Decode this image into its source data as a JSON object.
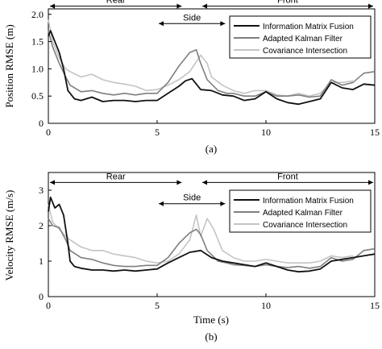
{
  "charts": [
    {
      "caption": "(a)",
      "ylabel": "Position RMSE (m)",
      "xlabel": "",
      "xlim": [
        0,
        15
      ],
      "ylim": [
        0,
        2.1
      ],
      "xticks": [
        "0",
        "5",
        "10",
        "15"
      ],
      "yticks": [
        "0",
        "0.5",
        "1.0",
        "1.5",
        "2.0"
      ],
      "ytick_values": [
        0,
        0.5,
        1.0,
        1.5,
        2.0
      ],
      "spans": [
        {
          "label": "Rear",
          "start": 0,
          "end": 6.2,
          "y": 2.15
        },
        {
          "label": "Side",
          "start": 5.0,
          "end": 8.2,
          "y": 1.83
        },
        {
          "label": "Front",
          "start": 7.0,
          "end": 15,
          "y": 2.15
        }
      ],
      "legend": {
        "position": "top-right"
      }
    },
    {
      "caption": "(b)",
      "ylabel": "Velocity RMSE (m/s)",
      "xlabel": "Time (s)",
      "xlim": [
        0,
        15
      ],
      "ylim": [
        0,
        3.5
      ],
      "xticks": [
        "0",
        "5",
        "10",
        "15"
      ],
      "yticks": [
        "0",
        "1",
        "2",
        "3"
      ],
      "ytick_values": [
        0,
        1,
        2,
        3
      ],
      "spans": [
        {
          "label": "Rear",
          "start": 0,
          "end": 6.2,
          "y": 3.22
        },
        {
          "label": "Side",
          "start": 5.0,
          "end": 8.2,
          "y": 2.62
        },
        {
          "label": "Front",
          "start": 7.0,
          "end": 15,
          "y": 3.22
        }
      ],
      "legend": {
        "position": "top-right"
      }
    }
  ],
  "legend_labels": [
    "Information Matrix Fusion",
    "Adapted Kalman Filter",
    "Covariance Intersection"
  ],
  "colors": {
    "imf": "#111111",
    "akf": "#7f7f7f",
    "ci": "#c4c4c4",
    "axis": "#000000"
  },
  "chart_data": [
    {
      "type": "line",
      "title": "",
      "caption": "(a)",
      "xlabel": "",
      "ylabel": "Position RMSE (m)",
      "xlim": [
        0,
        15
      ],
      "ylim": [
        0,
        2.1
      ],
      "grid": false,
      "legend": "top-right",
      "series": [
        {
          "name": "Information Matrix Fusion",
          "x": [
            0,
            0.1,
            0.3,
            0.5,
            0.7,
            0.9,
            1.0,
            1.2,
            1.5,
            2.0,
            2.5,
            3.0,
            3.5,
            4.0,
            4.5,
            5.0,
            5.5,
            6.0,
            6.3,
            6.6,
            6.8,
            7.0,
            7.5,
            8.0,
            8.5,
            9.0,
            9.5,
            10.0,
            10.5,
            11.0,
            11.5,
            12.0,
            12.5,
            13.0,
            13.5,
            14.0,
            14.5,
            15.0
          ],
          "y": [
            1.6,
            1.7,
            1.5,
            1.3,
            1.0,
            0.6,
            0.55,
            0.45,
            0.42,
            0.48,
            0.4,
            0.42,
            0.42,
            0.4,
            0.42,
            0.42,
            0.55,
            0.68,
            0.78,
            0.82,
            0.72,
            0.62,
            0.6,
            0.52,
            0.5,
            0.42,
            0.45,
            0.58,
            0.45,
            0.38,
            0.35,
            0.4,
            0.45,
            0.75,
            0.65,
            0.62,
            0.72,
            0.7
          ]
        },
        {
          "name": "Adapted Kalman Filter",
          "x": [
            0,
            0.2,
            0.5,
            0.8,
            1.0,
            1.5,
            2.0,
            2.5,
            3.0,
            3.5,
            4.0,
            4.5,
            5.0,
            5.5,
            6.0,
            6.5,
            6.8,
            7.0,
            7.3,
            7.8,
            8.2,
            8.5,
            9.0,
            9.5,
            10.0,
            10.5,
            11.0,
            11.5,
            12.0,
            12.5,
            13.0,
            13.5,
            14.0,
            14.5,
            15.0
          ],
          "y": [
            1.7,
            1.4,
            1.1,
            0.85,
            0.7,
            0.58,
            0.6,
            0.55,
            0.52,
            0.55,
            0.52,
            0.55,
            0.55,
            0.75,
            1.05,
            1.3,
            1.35,
            1.1,
            0.8,
            0.6,
            0.55,
            0.55,
            0.5,
            0.5,
            0.58,
            0.5,
            0.5,
            0.52,
            0.48,
            0.5,
            0.8,
            0.7,
            0.75,
            0.92,
            0.95
          ]
        },
        {
          "name": "Covariance Intersection",
          "x": [
            0,
            0.2,
            0.5,
            0.8,
            1.0,
            1.5,
            2.0,
            2.5,
            3.0,
            3.5,
            4.0,
            4.5,
            5.0,
            5.5,
            6.0,
            6.5,
            7.0,
            7.3,
            7.5,
            8.0,
            8.5,
            9.0,
            9.5,
            10.0,
            10.5,
            11.0,
            11.5,
            12.0,
            12.5,
            13.0,
            13.5,
            14.0
          ],
          "y": [
            1.9,
            1.5,
            1.2,
            1.0,
            0.95,
            0.85,
            0.9,
            0.8,
            0.75,
            0.72,
            0.68,
            0.6,
            0.62,
            0.7,
            0.8,
            0.95,
            1.25,
            1.1,
            0.85,
            0.7,
            0.6,
            0.55,
            0.6,
            0.6,
            0.52,
            0.5,
            0.55,
            0.5,
            0.55,
            0.75,
            0.75,
            0.78
          ]
        }
      ]
    },
    {
      "type": "line",
      "title": "",
      "caption": "(b)",
      "xlabel": "Time (s)",
      "ylabel": "Velocity RMSE (m/s)",
      "xlim": [
        0,
        15
      ],
      "ylim": [
        0,
        3.5
      ],
      "grid": false,
      "legend": "top-right",
      "series": [
        {
          "name": "Information Matrix Fusion",
          "x": [
            0,
            0.1,
            0.3,
            0.5,
            0.7,
            0.9,
            1.0,
            1.2,
            1.5,
            2.0,
            2.5,
            3.0,
            3.5,
            4.0,
            4.5,
            5.0,
            5.5,
            6.0,
            6.5,
            7.0,
            7.5,
            8.0,
            8.5,
            9.0,
            9.5,
            10.0,
            10.5,
            11.0,
            11.5,
            12.0,
            12.5,
            13.0,
            13.5,
            14.0,
            14.5,
            15.0
          ],
          "y": [
            2.4,
            2.8,
            2.5,
            2.6,
            2.3,
            1.5,
            1.0,
            0.85,
            0.8,
            0.75,
            0.75,
            0.72,
            0.75,
            0.72,
            0.75,
            0.78,
            0.95,
            1.1,
            1.25,
            1.3,
            1.1,
            1.0,
            0.95,
            0.9,
            0.85,
            0.95,
            0.85,
            0.75,
            0.7,
            0.72,
            0.78,
            1.0,
            1.05,
            1.1,
            1.15,
            1.2
          ]
        },
        {
          "name": "Adapted Kalman Filter",
          "x": [
            0,
            0.2,
            0.5,
            0.8,
            1.0,
            1.5,
            2.0,
            2.5,
            3.0,
            3.5,
            4.0,
            4.5,
            5.0,
            5.5,
            6.0,
            6.5,
            6.8,
            7.0,
            7.3,
            7.8,
            8.2,
            8.5,
            9.0,
            9.5,
            10.0,
            10.5,
            11.0,
            11.5,
            12.0,
            12.5,
            13.0,
            13.5,
            14.0,
            14.5,
            15.0
          ],
          "y": [
            2.2,
            2.0,
            1.95,
            1.6,
            1.3,
            1.1,
            1.05,
            0.95,
            0.88,
            0.85,
            0.85,
            0.88,
            0.88,
            1.1,
            1.5,
            1.8,
            1.9,
            1.75,
            1.3,
            1.0,
            0.95,
            0.9,
            0.88,
            0.85,
            0.9,
            0.85,
            0.82,
            0.85,
            0.8,
            0.85,
            1.1,
            1.0,
            1.05,
            1.3,
            1.35
          ]
        },
        {
          "name": "Covariance Intersection",
          "x": [
            0,
            0.2,
            0.5,
            0.8,
            1.0,
            1.5,
            2.0,
            2.5,
            3.0,
            3.5,
            4.0,
            4.5,
            5.0,
            5.5,
            6.0,
            6.5,
            6.8,
            7.0,
            7.3,
            7.6,
            8.0,
            8.5,
            9.0,
            9.5,
            10.0,
            10.5,
            11.0,
            11.5,
            12.0,
            12.5,
            13.0,
            13.5,
            14.0
          ],
          "y": [
            2.6,
            2.1,
            1.9,
            1.7,
            1.6,
            1.4,
            1.3,
            1.3,
            1.2,
            1.15,
            1.1,
            1.0,
            0.95,
            1.0,
            1.2,
            1.6,
            2.3,
            1.7,
            2.2,
            1.9,
            1.3,
            1.1,
            1.0,
            1.0,
            1.05,
            1.0,
            0.95,
            0.95,
            0.95,
            1.0,
            1.15,
            1.1,
            1.15
          ]
        }
      ]
    }
  ]
}
